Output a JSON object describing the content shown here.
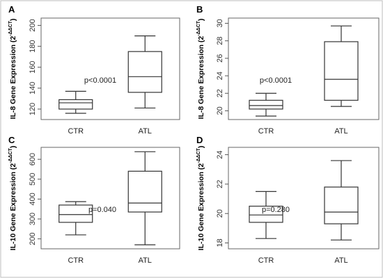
{
  "chart_data": [
    {
      "panel": "A",
      "type": "box",
      "ylabel": "IL-8 Gene Expression (2",
      "ylabel_sup": "-ΔΔCT",
      "ylabel_close": ")",
      "categories": [
        "CTR",
        "ATL"
      ],
      "ylim": [
        110,
        207
      ],
      "yticks": [
        120,
        140,
        160,
        180,
        200
      ],
      "boxes": [
        {
          "name": "CTR",
          "min": 116,
          "q1": 120,
          "median": 126,
          "q3": 129,
          "max": 137
        },
        {
          "name": "ATL",
          "min": 121,
          "q1": 136,
          "median": 151,
          "q3": 175,
          "max": 190
        }
      ],
      "annotation": "p<0.0001"
    },
    {
      "panel": "B",
      "type": "box",
      "ylabel": "IL-8 Gene Expression (2",
      "ylabel_sup": "-ΔΔCT",
      "ylabel_close": ")",
      "categories": [
        "CTR",
        "ATL"
      ],
      "ylim": [
        19.0,
        30.6
      ],
      "yticks": [
        20,
        22,
        24,
        26,
        28,
        30
      ],
      "boxes": [
        {
          "name": "CTR",
          "min": 19.4,
          "q1": 20.2,
          "median": 20.6,
          "q3": 21.2,
          "max": 22.0
        },
        {
          "name": "ATL",
          "min": 20.5,
          "q1": 21.2,
          "median": 23.6,
          "q3": 27.9,
          "max": 29.7
        }
      ],
      "annotation": "p<0.0001"
    },
    {
      "panel": "C",
      "type": "box",
      "ylabel": "IL-10 Gene Expression (2",
      "ylabel_sup": "-ΔΔCT",
      "ylabel_close": ")",
      "categories": [
        "CTR",
        "ATL"
      ],
      "ylim": [
        150,
        660
      ],
      "yticks": [
        200,
        300,
        400,
        500,
        600
      ],
      "boxes": [
        {
          "name": "CTR",
          "min": 220,
          "q1": 283,
          "median": 322,
          "q3": 370,
          "max": 387
        },
        {
          "name": "ATL",
          "min": 170,
          "q1": 335,
          "median": 380,
          "q3": 540,
          "max": 638
        }
      ],
      "annotation": "p=0.040"
    },
    {
      "panel": "D",
      "type": "box",
      "ylabel": "IL-10 Gene Expression (2",
      "ylabel_sup": "-ΔΔCT",
      "ylabel_close": ")",
      "categories": [
        "CTR",
        "ATL"
      ],
      "ylim": [
        17.6,
        24.5
      ],
      "yticks": [
        18,
        20,
        22,
        24
      ],
      "boxes": [
        {
          "name": "CTR",
          "min": 18.3,
          "q1": 19.4,
          "median": 19.9,
          "q3": 20.5,
          "max": 21.5
        },
        {
          "name": "ATL",
          "min": 18.2,
          "q1": 19.3,
          "median": 20.1,
          "q3": 21.8,
          "max": 23.6
        }
      ],
      "annotation": "p=0.280"
    }
  ]
}
